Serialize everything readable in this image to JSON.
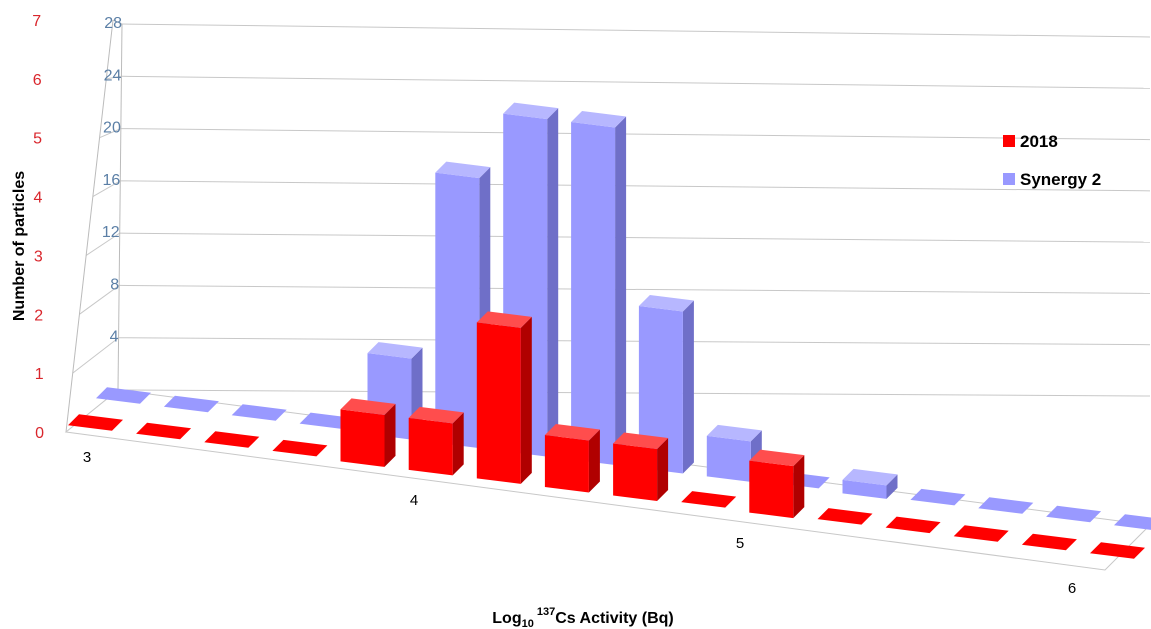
{
  "chart_data": {
    "type": "bar",
    "style": "3d-column",
    "xlabel": {
      "prefix": "Log",
      "sub": "10",
      "sup": "137",
      "suffix": "Cs Activity (Bq)"
    },
    "ylabel": "Number of particles",
    "x_ticks": [
      "3",
      "4",
      "5",
      "6"
    ],
    "y_left_ticks": [
      "0",
      "1",
      "2",
      "3",
      "4",
      "5",
      "6",
      "7"
    ],
    "y_right_ticks": [
      "4",
      "8",
      "12",
      "16",
      "20",
      "24",
      "28"
    ],
    "ylim_left": [
      0,
      7
    ],
    "ylim_right": [
      0,
      28
    ],
    "legend_position": "right",
    "categories": [
      3.0,
      3.2,
      3.4,
      3.6,
      3.8,
      4.0,
      4.2,
      4.4,
      4.6,
      4.8,
      5.0,
      5.2,
      5.4,
      5.6,
      5.8,
      6.0
    ],
    "series": [
      {
        "name": "2018",
        "axis": "left",
        "color": "#ff0000",
        "values": [
          0,
          0,
          0,
          0,
          1,
          1,
          3,
          1,
          1,
          0,
          1,
          0,
          0,
          0,
          0,
          0
        ]
      },
      {
        "name": "Synergy 2",
        "axis": "right",
        "color": "#9999ff",
        "values": [
          0,
          0,
          0,
          0,
          6,
          20,
          25,
          25,
          12,
          3,
          0,
          1,
          0,
          0,
          0,
          0
        ]
      }
    ]
  }
}
